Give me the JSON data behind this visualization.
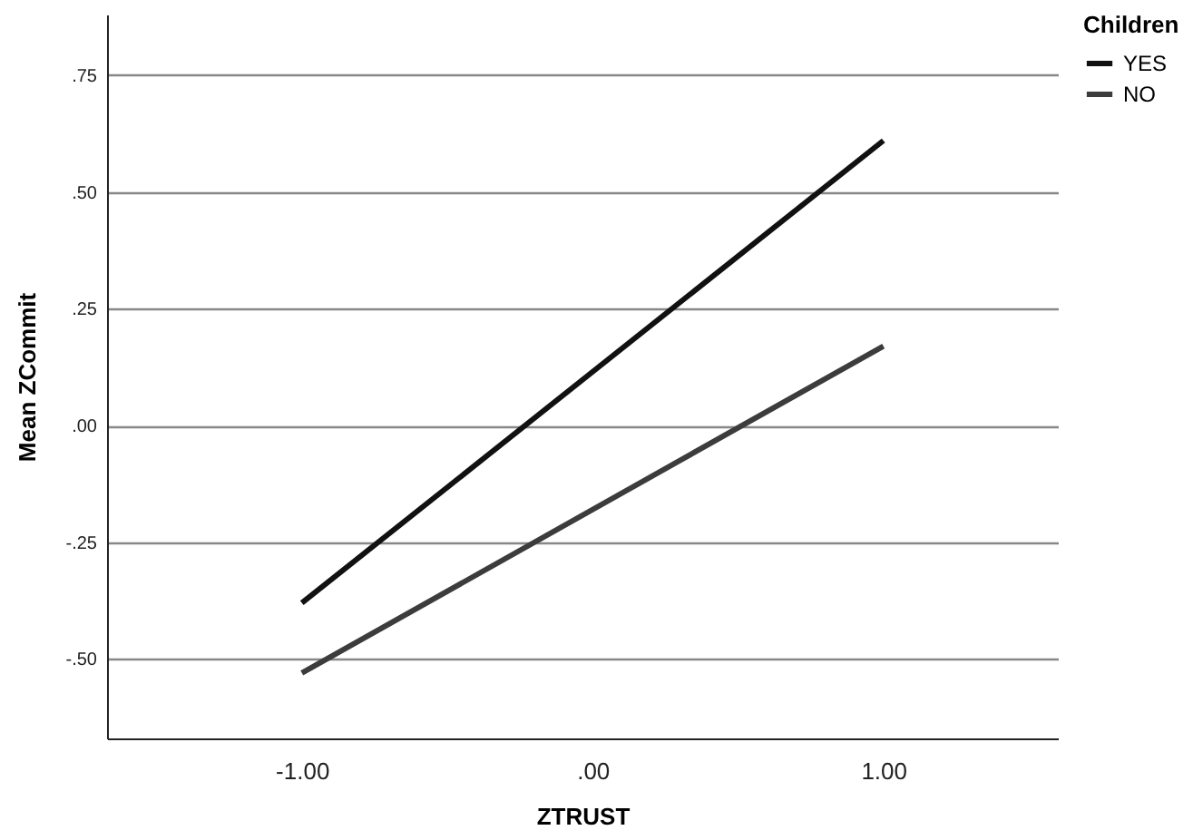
{
  "chart_data": {
    "type": "line",
    "xlabel": "ZTRUST",
    "ylabel": "Mean ZCommit",
    "legend_title": "Children",
    "x": [
      -1,
      1
    ],
    "series": [
      {
        "name": "YES",
        "color": "#111111",
        "values": [
          -0.38,
          0.61
        ]
      },
      {
        "name": "NO",
        "color": "#3c3c3c",
        "values": [
          -0.53,
          0.17
        ]
      }
    ],
    "xlim": [
      -1.67,
      1.6
    ],
    "xticks": [
      {
        "value": -1,
        "label": "-1.00"
      },
      {
        "value": 0,
        "label": ".00"
      },
      {
        "value": 1,
        "label": "1.00"
      }
    ],
    "ylim": [
      -0.67,
      0.88
    ],
    "yticks": [
      {
        "value": -0.5,
        "label": "-.50"
      },
      {
        "value": -0.25,
        "label": "-.25"
      },
      {
        "value": 0,
        "label": ".00"
      },
      {
        "value": 0.25,
        "label": ".25"
      },
      {
        "value": 0.5,
        "label": ".50"
      },
      {
        "value": 0.75,
        "label": ".75"
      }
    ],
    "grid": "y",
    "legend": "top right",
    "marker": "none",
    "line_style": "solid"
  }
}
